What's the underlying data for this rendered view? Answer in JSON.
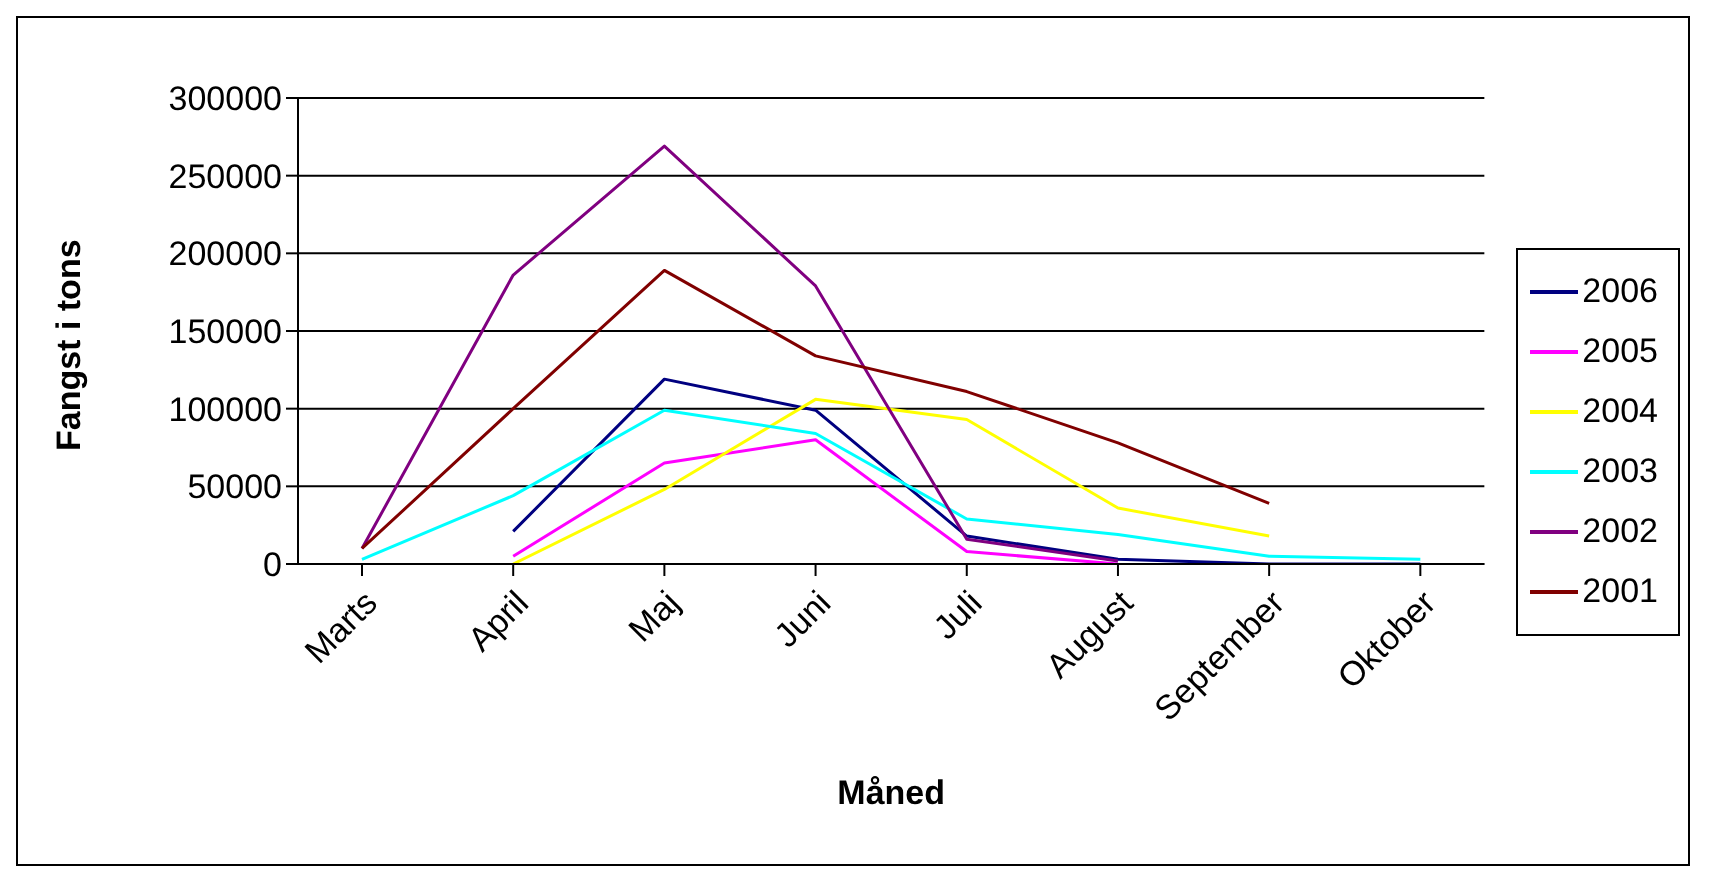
{
  "chart_data": {
    "type": "line",
    "xlabel": "Måned",
    "ylabel": "Fangst i tons",
    "categories": [
      "Marts",
      "April",
      "Maj",
      "Juni",
      "Juli",
      "August",
      "September",
      "Oktober"
    ],
    "ylim": [
      0,
      300000
    ],
    "yticks": [
      0,
      50000,
      100000,
      150000,
      200000,
      250000,
      300000
    ],
    "grid": "y",
    "legend": "right",
    "marker": "none",
    "line_style": "solid",
    "series": [
      {
        "name": "2006",
        "color": "#000080",
        "values": [
          null,
          21000,
          119000,
          99000,
          18000,
          3000,
          0,
          0
        ]
      },
      {
        "name": "2005",
        "color": "#ff00ff",
        "values": [
          null,
          5000,
          65000,
          80000,
          8000,
          0,
          null,
          null
        ]
      },
      {
        "name": "2004",
        "color": "#ffff00",
        "values": [
          null,
          0,
          48000,
          106000,
          93000,
          36000,
          18000,
          null
        ]
      },
      {
        "name": "2003",
        "color": "#00ffff",
        "values": [
          3000,
          44000,
          99000,
          84000,
          29000,
          19000,
          5000,
          3000
        ]
      },
      {
        "name": "2002",
        "color": "#800080",
        "values": [
          10000,
          186000,
          269000,
          179000,
          16000,
          2000,
          null,
          null
        ]
      },
      {
        "name": "2001",
        "color": "#800000",
        "values": [
          10000,
          100000,
          189000,
          134000,
          111000,
          78000,
          39000,
          null
        ]
      }
    ]
  }
}
